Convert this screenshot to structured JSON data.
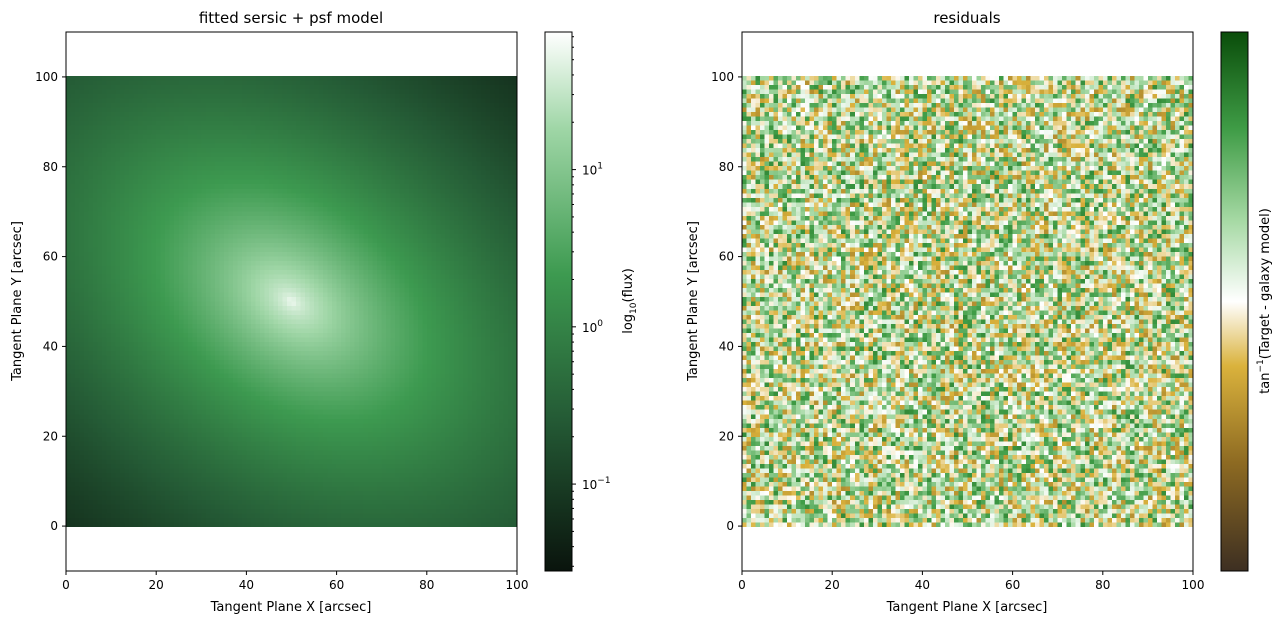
{
  "chart_data": [
    {
      "type": "heatmap",
      "title": "fitted sersic + psf model",
      "xlabel": "Tangent Plane X [arcsec]",
      "ylabel": "Tangent Plane Y [arcsec]",
      "xlim": [
        0,
        100
      ],
      "ylim": [
        -10,
        110
      ],
      "image_extent": [
        0,
        100,
        0,
        100
      ],
      "xticks": [
        0,
        20,
        40,
        60,
        80,
        100
      ],
      "yticks": [
        0,
        20,
        40,
        60,
        80,
        100
      ],
      "model": {
        "center": [
          50,
          50
        ],
        "position_angle_deg": 35,
        "axis_ratio": 0.55,
        "peak_flux": 70,
        "min_flux": 0.03
      },
      "colorbar": {
        "label_base": "log",
        "label_sub": "10",
        "label_rest": "(flux)",
        "scale": "log",
        "range": [
          0.028,
          75
        ],
        "major_tick_labels": [
          {
            "value": 0.1,
            "base": "10",
            "exp": "−1"
          },
          {
            "value": 1,
            "base": "10",
            "exp": "0"
          },
          {
            "value": 10,
            "base": "10",
            "exp": "1"
          }
        ],
        "colors": [
          "#0a140d",
          "#245a35",
          "#3d9a50",
          "#9fd6a6",
          "#ffffff"
        ]
      }
    },
    {
      "type": "heatmap",
      "title": "residuals",
      "xlabel": "Tangent Plane X [arcsec]",
      "ylabel": "Tangent Plane Y [arcsec]",
      "xlim": [
        0,
        100
      ],
      "ylim": [
        -10,
        110
      ],
      "image_extent": [
        0,
        100,
        0,
        100
      ],
      "xticks": [
        0,
        20,
        40,
        60,
        80,
        100
      ],
      "yticks": [
        0,
        20,
        40,
        60,
        80,
        100
      ],
      "grid_cells": 100,
      "noise": "uniform random residual field",
      "colorbar": {
        "label_pre": "tan",
        "label_sup": "−1",
        "label_rest": "(Target - galaxy model)",
        "scale": "linear",
        "colors": [
          "#3d2f22",
          "#8d6a22",
          "#dab23c",
          "#ffffff",
          "#a6d9a4",
          "#3f9c46",
          "#0a4d0a"
        ]
      }
    }
  ]
}
